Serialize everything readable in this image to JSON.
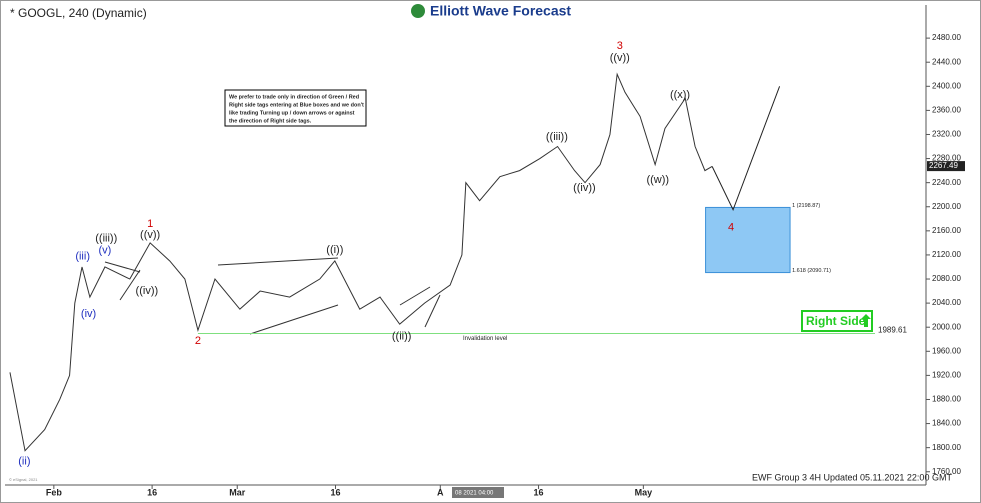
{
  "chart_data": {
    "type": "line",
    "title": "* GOOGL, 240 (Dynamic)",
    "logo": "Elliott Wave Forecast",
    "footer": "EWF Group 3 4H Updated 05.11.2021 22:00 GMT",
    "copyright": "© eSignal, 2021",
    "cursor_label": "08 2021 04:00",
    "note": [
      "We prefer to trade only in direction of Green / Red",
      "Right side tags entering at Blue boxes and we don't",
      "like trading Turning up / down arrows or against",
      "the direction of Right side tags."
    ],
    "series": [
      {
        "color": "#333333",
        "x": [
          25.3,
          27.6,
          30.6,
          32.9,
          34.4,
          35.2,
          36.3,
          37.5,
          39.8,
          43.6,
          46.7,
          49.7,
          52,
          54,
          56.6,
          60.4,
          63.5,
          68,
          72.6,
          74.9,
          78.7,
          81.8,
          84.8,
          88.6,
          92.5,
          94.3,
          94.9,
          97,
          100.1,
          103.1,
          106.2,
          108.9,
          111.5,
          113.1,
          115.4,
          116.9,
          118,
          119.2,
          121.5,
          123.8,
          125.3,
          128.4,
          129.9,
          131.4,
          132.5
        ],
        "values": [
          1925,
          1795,
          1830,
          1880,
          1920,
          2040,
          2100,
          2050,
          2100,
          2080,
          2140,
          2110,
          2080,
          1995,
          2080,
          2030,
          2060,
          2050,
          2080,
          2110,
          2030,
          2050,
          2005,
          2040,
          2070,
          2120,
          2240,
          2210,
          2250,
          2260,
          2280,
          2300,
          2260,
          2240,
          2270,
          2320,
          2420,
          2390,
          2350,
          2270,
          2330,
          2380,
          2300,
          2260,
          2267
        ]
      },
      {
        "color": "#222222",
        "x": [
          132.5,
          135.7,
          142.8
        ],
        "values": [
          2267,
          2195,
          2400
        ]
      }
    ],
    "current_price": 2267.49,
    "zone": {
      "high": 2198.87,
      "low": 2090.71,
      "high_label": "1 (2198.87)",
      "low_label": "1.618 (2090.71)",
      "x": [
        131.5,
        144.4
      ],
      "color": "#8ec8f4"
    },
    "invalidation": {
      "value": 1989.61,
      "label": "Invalidation level",
      "x_start": 54,
      "color": "#7fe07f"
    },
    "right_side": "Right Side",
    "wave_labels": [
      {
        "text": "(ii)",
        "x": 27.5,
        "y": 1777,
        "color": "#1f2fbf"
      },
      {
        "text": "(iii)",
        "x": 36.4,
        "y": 2117,
        "color": "#1f2fbf"
      },
      {
        "text": "(iv)",
        "x": 37.3,
        "y": 2022,
        "color": "#1f2fbf"
      },
      {
        "text": "(v)",
        "x": 39.8,
        "y": 2127,
        "color": "#1f2fbf"
      },
      {
        "text": "((iii))",
        "x": 40,
        "y": 2147,
        "color": "#222222"
      },
      {
        "text": "((iv))",
        "x": 46.2,
        "y": 2060,
        "color": "#222222"
      },
      {
        "text": "((v))",
        "x": 46.7,
        "y": 2153,
        "color": "#222222"
      },
      {
        "text": "1",
        "x": 46.7,
        "y": 2171,
        "color": "#d00000"
      },
      {
        "text": "2",
        "x": 54,
        "y": 1977,
        "color": "#d00000"
      },
      {
        "text": "((i))",
        "x": 74.9,
        "y": 2128,
        "color": "#222222"
      },
      {
        "text": "((ii))",
        "x": 85.1,
        "y": 1984,
        "color": "#222222"
      },
      {
        "text": "((iii))",
        "x": 108.8,
        "y": 2316,
        "color": "#222222"
      },
      {
        "text": "((iv))",
        "x": 113,
        "y": 2231,
        "color": "#222222"
      },
      {
        "text": "((v))",
        "x": 118.4,
        "y": 2447,
        "color": "#222222"
      },
      {
        "text": "3",
        "x": 118.4,
        "y": 2467,
        "color": "#d00000"
      },
      {
        "text": "((w))",
        "x": 124.2,
        "y": 2244,
        "color": "#222222"
      },
      {
        "text": "((x))",
        "x": 127.6,
        "y": 2385,
        "color": "#222222"
      },
      {
        "text": "4",
        "x": 135.4,
        "y": 2165,
        "color": "#d00000"
      }
    ],
    "xlim": [
      25,
      165
    ],
    "ylim": [
      1738,
      2530
    ],
    "xticks": [
      {
        "value": 32,
        "label": "Feb"
      },
      {
        "value": 47,
        "label": "16"
      },
      {
        "value": 60,
        "label": "Mar"
      },
      {
        "value": 75,
        "label": "16"
      },
      {
        "value": 91,
        "label": "A"
      },
      {
        "value": 106,
        "label": "16"
      },
      {
        "value": 122,
        "label": "May"
      }
    ],
    "yticks": [
      {
        "value": 1760,
        "label": "1760.00"
      },
      {
        "value": 1800,
        "label": "1800.00"
      },
      {
        "value": 1840,
        "label": "1840.00"
      },
      {
        "value": 1880,
        "label": "1880.00"
      },
      {
        "value": 1920,
        "label": "1920.00"
      },
      {
        "value": 1960,
        "label": "1960.00"
      },
      {
        "value": 2000,
        "label": "2000.00"
      },
      {
        "value": 2040,
        "label": "2040.00"
      },
      {
        "value": 2080,
        "label": "2080.00"
      },
      {
        "value": 2120,
        "label": "2120.00"
      },
      {
        "value": 2160,
        "label": "2160.00"
      },
      {
        "value": 2200,
        "label": "2200.00"
      },
      {
        "value": 2240,
        "label": "2240.00"
      },
      {
        "value": 2280,
        "label": "2280.00"
      },
      {
        "value": 2320,
        "label": "2320.00"
      },
      {
        "value": 2360,
        "label": "2360.00"
      },
      {
        "value": 2400,
        "label": "2400.00"
      },
      {
        "value": 2440,
        "label": "2440.00"
      },
      {
        "value": 2480,
        "label": "2480.00"
      }
    ]
  }
}
